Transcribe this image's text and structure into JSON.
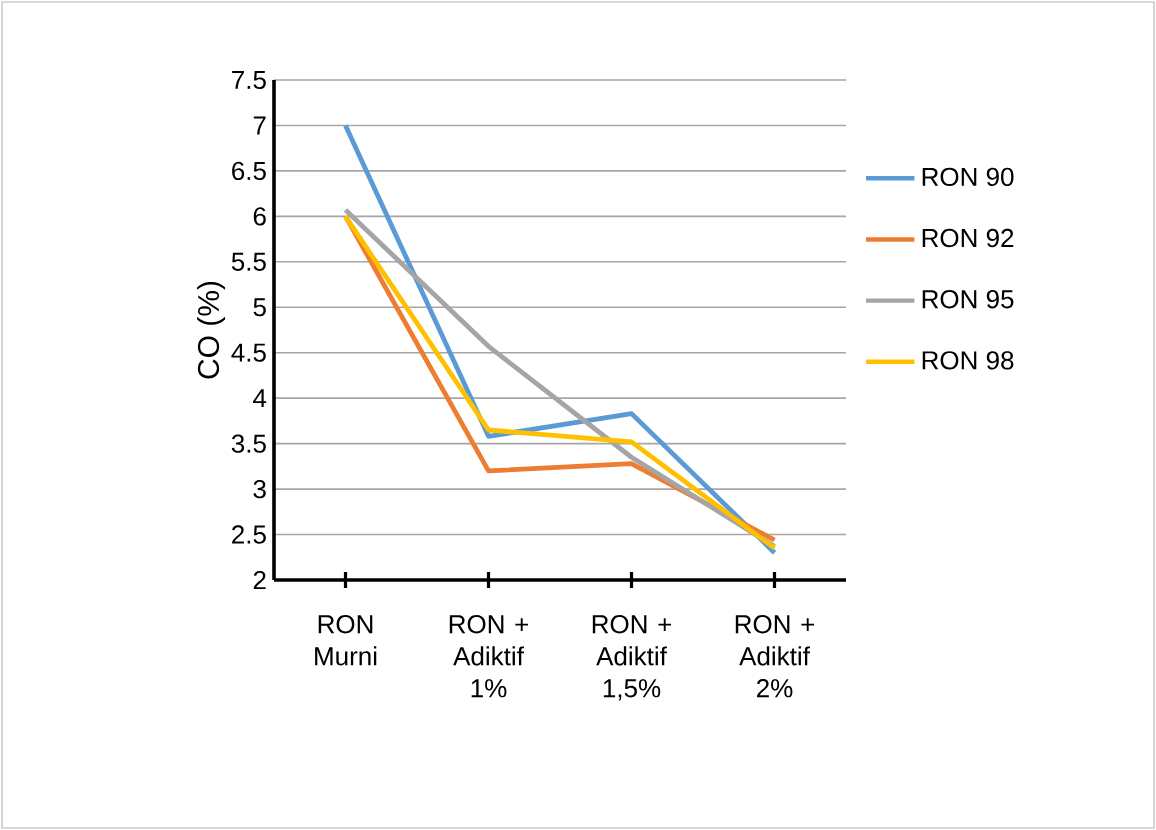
{
  "chart_data": {
    "type": "line",
    "ylabel": "CO (%)",
    "categories": [
      "RON Murni",
      "RON + Adiktif 1%",
      "RON + Adiktif 1,5%",
      "RON + Adiktif 2%"
    ],
    "series": [
      {
        "name": "RON 90",
        "color": "#5b9bd5",
        "values": [
          7.0,
          3.58,
          3.83,
          2.3
        ]
      },
      {
        "name": "RON 92",
        "color": "#ed7d31",
        "values": [
          6.0,
          3.2,
          3.28,
          2.44
        ]
      },
      {
        "name": "RON 95",
        "color": "#a5a5a5",
        "values": [
          6.07,
          4.57,
          3.35,
          2.37
        ]
      },
      {
        "name": "RON 98",
        "color": "#ffc000",
        "values": [
          6.0,
          3.65,
          3.52,
          2.35
        ]
      }
    ],
    "ylim": [
      2,
      7.5
    ],
    "yticks": [
      2,
      2.5,
      3,
      3.5,
      4,
      4.5,
      5,
      5.5,
      6,
      6.5,
      7,
      7.5
    ],
    "grid": "y",
    "legend": "right",
    "marker": "none",
    "line_style": "solid"
  }
}
